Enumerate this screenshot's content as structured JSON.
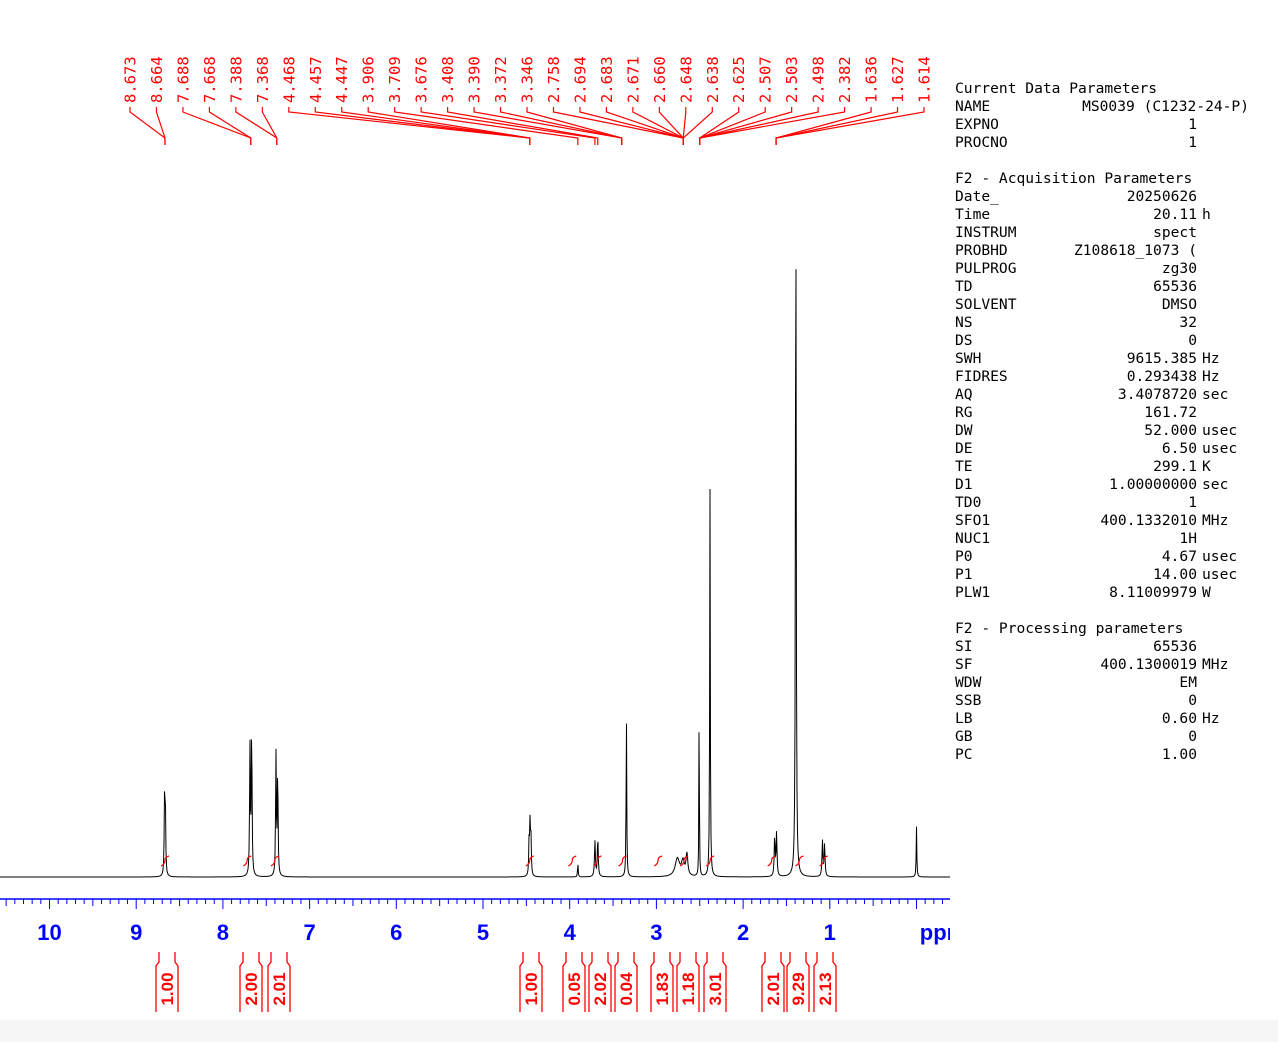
{
  "chart_data": {
    "type": "line",
    "title": "",
    "xlabel": "ppm",
    "ylabel": "",
    "xlim": [
      11.0,
      -0.62
    ],
    "x_ticks": [
      10,
      9,
      8,
      7,
      6,
      5,
      4,
      3,
      2,
      1
    ],
    "peak_labels": [
      "8.673",
      "8.664",
      "7.688",
      "7.668",
      "7.388",
      "7.368",
      "4.468",
      "4.457",
      "4.447",
      "3.906",
      "3.709",
      "3.676",
      "3.408",
      "3.390",
      "3.372",
      "3.346",
      "2.758",
      "2.694",
      "2.683",
      "2.671",
      "2.660",
      "2.648",
      "2.638",
      "2.625",
      "2.507",
      "2.503",
      "2.498",
      "2.382",
      "1.636",
      "1.627",
      "1.614"
    ],
    "label_groups": [
      {
        "start": 0,
        "count": 2,
        "ppm": 8.668
      },
      {
        "start": 2,
        "count": 2,
        "ppm": 7.678
      },
      {
        "start": 4,
        "count": 2,
        "ppm": 7.378
      },
      {
        "start": 6,
        "count": 4,
        "ppm": 4.46
      },
      {
        "start": 10,
        "count": 1,
        "ppm": 3.906
      },
      {
        "start": 11,
        "count": 1,
        "ppm": 3.709
      },
      {
        "start": 12,
        "count": 1,
        "ppm": 3.676
      },
      {
        "start": 13,
        "count": 3,
        "ppm": 3.4
      },
      {
        "start": 16,
        "count": 7,
        "ppm": 2.69
      },
      {
        "start": 23,
        "count": 5,
        "ppm": 2.5
      },
      {
        "start": 28,
        "count": 3,
        "ppm": 1.62
      }
    ],
    "peaks": [
      {
        "ppm": 8.673,
        "height": 0.1,
        "width": 0.005
      },
      {
        "ppm": 8.664,
        "height": 0.095,
        "width": 0.005
      },
      {
        "ppm": 7.688,
        "height": 0.18,
        "width": 0.005
      },
      {
        "ppm": 7.668,
        "height": 0.21,
        "width": 0.005
      },
      {
        "ppm": 7.388,
        "height": 0.17,
        "width": 0.005
      },
      {
        "ppm": 7.368,
        "height": 0.15,
        "width": 0.005
      },
      {
        "ppm": 4.468,
        "height": 0.05,
        "width": 0.005
      },
      {
        "ppm": 4.457,
        "height": 0.07,
        "width": 0.005
      },
      {
        "ppm": 4.447,
        "height": 0.05,
        "width": 0.005
      },
      {
        "ppm": 3.906,
        "height": 0.02,
        "width": 0.004
      },
      {
        "ppm": 3.709,
        "height": 0.05,
        "width": 0.006
      },
      {
        "ppm": 3.676,
        "height": 0.055,
        "width": 0.006
      },
      {
        "ppm": 3.346,
        "height": 0.23,
        "width": 0.004
      },
      {
        "ppm": 2.758,
        "height": 0.025,
        "width": 0.03
      },
      {
        "ppm": 2.694,
        "height": 0.02,
        "width": 0.02
      },
      {
        "ppm": 2.648,
        "height": 0.03,
        "width": 0.012
      },
      {
        "ppm": 2.507,
        "height": 0.26,
        "width": 0.003
      },
      {
        "ppm": 2.382,
        "height": 0.54,
        "width": 0.004
      },
      {
        "ppm": 1.636,
        "height": 0.055,
        "width": 0.006
      },
      {
        "ppm": 1.614,
        "height": 0.06,
        "width": 0.006
      },
      {
        "ppm": 1.392,
        "height": 1.0,
        "width": 0.005
      },
      {
        "ppm": 1.085,
        "height": 0.05,
        "width": 0.006
      },
      {
        "ppm": 1.06,
        "height": 0.045,
        "width": 0.006
      },
      {
        "ppm": 0.0,
        "height": 0.07,
        "width": 0.004
      }
    ],
    "integrals": [
      {
        "value": "1.00",
        "ppm": 8.668
      },
      {
        "value": "2.00",
        "ppm": 7.72
      },
      {
        "value": "2.01",
        "ppm": 7.4
      },
      {
        "value": "1.00",
        "ppm": 4.46
      },
      {
        "value": "0.05",
        "ppm": 3.97
      },
      {
        "value": "2.02",
        "ppm": 3.68
      },
      {
        "value": "0.04",
        "ppm": 3.39
      },
      {
        "value": "1.83",
        "ppm": 2.98
      },
      {
        "value": "1.18",
        "ppm": 2.68
      },
      {
        "value": "3.01",
        "ppm": 2.38
      },
      {
        "value": "2.01",
        "ppm": 1.67
      },
      {
        "value": "9.29",
        "ppm": 1.35
      },
      {
        "value": "2.13",
        "ppm": 1.07
      }
    ],
    "colors": {
      "spectrum": "#000000",
      "annotation": "#ff0000",
      "axis": "#0000ff"
    }
  },
  "parameters": {
    "current_title": "Current Data Parameters",
    "current_rows": [
      {
        "key": "NAME",
        "value": "MS0039 (C1232-24-P)",
        "unit": ""
      },
      {
        "key": "EXPNO",
        "value": "1",
        "unit": ""
      },
      {
        "key": "PROCNO",
        "value": "1",
        "unit": ""
      }
    ],
    "acq_title": "F2 - Acquisition Parameters",
    "acq_rows": [
      {
        "key": "Date_",
        "value": "20250626",
        "unit": ""
      },
      {
        "key": "Time",
        "value": "20.11",
        "unit": "h"
      },
      {
        "key": "INSTRUM",
        "value": "spect",
        "unit": ""
      },
      {
        "key": "PROBHD",
        "value": "Z108618_1073 (",
        "unit": ""
      },
      {
        "key": "PULPROG",
        "value": "zg30",
        "unit": ""
      },
      {
        "key": "TD",
        "value": "65536",
        "unit": ""
      },
      {
        "key": "SOLVENT",
        "value": "DMSO",
        "unit": ""
      },
      {
        "key": "NS",
        "value": "32",
        "unit": ""
      },
      {
        "key": "DS",
        "value": "0",
        "unit": ""
      },
      {
        "key": "SWH",
        "value": "9615.385",
        "unit": "Hz"
      },
      {
        "key": "FIDRES",
        "value": "0.293438",
        "unit": "Hz"
      },
      {
        "key": "AQ",
        "value": "3.4078720",
        "unit": "sec"
      },
      {
        "key": "RG",
        "value": "161.72",
        "unit": ""
      },
      {
        "key": "DW",
        "value": "52.000",
        "unit": "usec"
      },
      {
        "key": "DE",
        "value": "6.50",
        "unit": "usec"
      },
      {
        "key": "TE",
        "value": "299.1",
        "unit": "K"
      },
      {
        "key": "D1",
        "value": "1.00000000",
        "unit": "sec"
      },
      {
        "key": "TD0",
        "value": "1",
        "unit": ""
      },
      {
        "key": "SFO1",
        "value": "400.1332010",
        "unit": "MHz"
      },
      {
        "key": "NUC1",
        "value": "1H",
        "unit": ""
      },
      {
        "key": "P0",
        "value": "4.67",
        "unit": "usec"
      },
      {
        "key": "P1",
        "value": "14.00",
        "unit": "usec"
      },
      {
        "key": "PLW1",
        "value": "8.11009979",
        "unit": "W"
      }
    ],
    "proc_title": "F2 - Processing parameters",
    "proc_rows": [
      {
        "key": "SI",
        "value": "65536",
        "unit": ""
      },
      {
        "key": "SF",
        "value": "400.1300019",
        "unit": "MHz"
      },
      {
        "key": "WDW",
        "value": "EM",
        "unit": ""
      },
      {
        "key": "SSB",
        "value": "0",
        "unit": ""
      },
      {
        "key": "LB",
        "value": "0.60",
        "unit": "Hz"
      },
      {
        "key": "GB",
        "value": "0",
        "unit": ""
      },
      {
        "key": "PC",
        "value": "1.00",
        "unit": ""
      }
    ]
  }
}
